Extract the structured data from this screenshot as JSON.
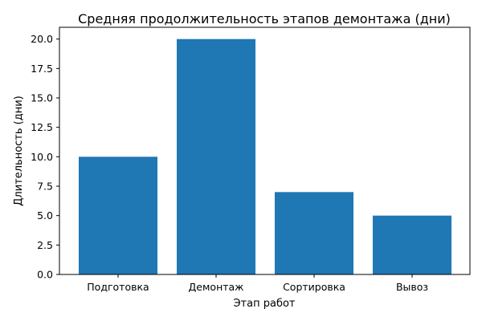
{
  "chart_data": {
    "type": "bar",
    "title": "Средняя продолжительность этапов демонтажа (дни)",
    "xlabel": "Этап работ",
    "ylabel": "Длительность (дни)",
    "categories": [
      "Подготовка",
      "Демонтаж",
      "Сортировка",
      "Вывоз"
    ],
    "values": [
      10,
      20,
      7,
      5
    ],
    "ylim": [
      0,
      21
    ],
    "yticks": [
      "0.0",
      "2.5",
      "5.0",
      "7.5",
      "10.0",
      "12.5",
      "15.0",
      "17.5",
      "20.0"
    ],
    "grid": false,
    "bar_color": "#1f77b4"
  }
}
